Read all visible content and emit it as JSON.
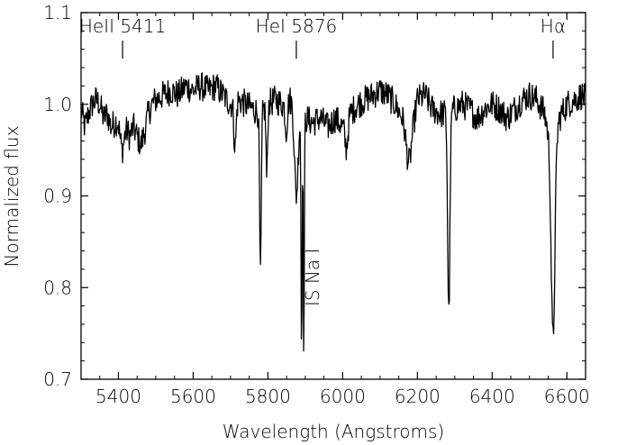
{
  "chart_data": {
    "type": "line",
    "xlabel": "Wavelength (Angstroms)",
    "ylabel": "Normalized flux",
    "xlim": [
      5300,
      6650
    ],
    "ylim": [
      0.7,
      1.1
    ],
    "x_ticks": [
      {
        "value": 5400,
        "label": "5400"
      },
      {
        "value": 5600,
        "label": "5600"
      },
      {
        "value": 5800,
        "label": "5800"
      },
      {
        "value": 6000,
        "label": "6000"
      },
      {
        "value": 6200,
        "label": "6200"
      },
      {
        "value": 6400,
        "label": "6400"
      },
      {
        "value": 6600,
        "label": "6600"
      }
    ],
    "y_ticks": [
      {
        "value": 0.7,
        "label": "0.7"
      },
      {
        "value": 0.8,
        "label": "0.8"
      },
      {
        "value": 0.9,
        "label": "0.9"
      },
      {
        "value": 1.0,
        "label": "1.0"
      },
      {
        "value": 1.1,
        "label": "1.1"
      }
    ],
    "annotations": [
      {
        "label": "HeII 5411",
        "x": 5411
      },
      {
        "label": "HeI 5876",
        "x": 5876
      },
      {
        "label": "Hα",
        "x": 6563
      }
    ],
    "side_annotation": {
      "label": "IS Na I",
      "x": 5893
    },
    "series": [
      {
        "continuum": [
          [
            5300,
            0.995
          ],
          [
            5310,
            0.975
          ],
          [
            5320,
            0.99
          ],
          [
            5330,
            1.0
          ],
          [
            5340,
            1.005
          ],
          [
            5350,
            1.0
          ],
          [
            5360,
            0.985
          ],
          [
            5370,
            0.99
          ],
          [
            5380,
            0.975
          ],
          [
            5390,
            0.98
          ],
          [
            5400,
            0.985
          ],
          [
            5410,
            0.97
          ],
          [
            5420,
            0.975
          ],
          [
            5430,
            0.965
          ],
          [
            5440,
            0.975
          ],
          [
            5450,
            0.965
          ],
          [
            5460,
            0.955
          ],
          [
            5470,
            0.97
          ],
          [
            5480,
            0.99
          ],
          [
            5490,
            1.0
          ],
          [
            5500,
            1.005
          ],
          [
            5520,
            1.01
          ],
          [
            5540,
            1.015
          ],
          [
            5560,
            1.01
          ],
          [
            5580,
            1.02
          ],
          [
            5600,
            1.015
          ],
          [
            5620,
            1.02
          ],
          [
            5640,
            1.015
          ],
          [
            5660,
            1.02
          ],
          [
            5680,
            1.01
          ],
          [
            5700,
            1.0
          ],
          [
            5720,
            1.005
          ],
          [
            5740,
            1.0
          ],
          [
            5760,
            0.995
          ],
          [
            5780,
            0.99
          ],
          [
            5800,
            1.0
          ],
          [
            5820,
            1.005
          ],
          [
            5840,
            1.0
          ],
          [
            5860,
            1.005
          ],
          [
            5880,
            1.0
          ],
          [
            5900,
            0.985
          ],
          [
            5920,
            0.98
          ],
          [
            5940,
            0.985
          ],
          [
            5960,
            0.975
          ],
          [
            5980,
            0.985
          ],
          [
            6000,
            0.975
          ],
          [
            6020,
            0.99
          ],
          [
            6040,
            1.0
          ],
          [
            6060,
            1.005
          ],
          [
            6080,
            1.01
          ],
          [
            6100,
            1.015
          ],
          [
            6120,
            1.01
          ],
          [
            6140,
            1.0
          ],
          [
            6160,
            0.985
          ],
          [
            6170,
            0.97
          ],
          [
            6180,
            0.965
          ],
          [
            6190,
            0.98
          ],
          [
            6200,
            1.005
          ],
          [
            6220,
            1.01
          ],
          [
            6240,
            0.995
          ],
          [
            6260,
            0.99
          ],
          [
            6280,
            0.99
          ],
          [
            6300,
            0.995
          ],
          [
            6320,
            1.0
          ],
          [
            6340,
            0.995
          ],
          [
            6360,
            0.985
          ],
          [
            6380,
            0.995
          ],
          [
            6400,
            1.0
          ],
          [
            6420,
            0.995
          ],
          [
            6440,
            0.985
          ],
          [
            6460,
            0.995
          ],
          [
            6480,
            1.005
          ],
          [
            6500,
            1.01
          ],
          [
            6520,
            1.005
          ],
          [
            6540,
            0.99
          ],
          [
            6550,
            0.97
          ],
          [
            6560,
            0.96
          ],
          [
            6580,
            0.985
          ],
          [
            6600,
            1.0
          ],
          [
            6620,
            1.005
          ],
          [
            6640,
            1.01
          ],
          [
            6650,
            1.005
          ]
        ],
        "absorption_lines": [
          {
            "center": 5409,
            "depth": 0.02,
            "width": 6
          },
          {
            "center": 5712,
            "depth": 0.05,
            "width": 3
          },
          {
            "center": 5780,
            "depth": 0.18,
            "width": 2.2
          },
          {
            "center": 5797,
            "depth": 0.08,
            "width": 2
          },
          {
            "center": 5849,
            "depth": 0.03,
            "width": 3
          },
          {
            "center": 5876,
            "depth": 0.1,
            "width": 5
          },
          {
            "center": 5890,
            "depth": 0.26,
            "width": 1.4
          },
          {
            "center": 5896,
            "depth": 0.26,
            "width": 1.4
          },
          {
            "center": 6010,
            "depth": 0.03,
            "width": 4
          },
          {
            "center": 6177,
            "depth": 0.03,
            "width": 6
          },
          {
            "center": 6284,
            "depth": 0.22,
            "width": 3
          },
          {
            "center": 6563,
            "depth": 0.22,
            "width": 5
          }
        ],
        "noise_amplitude": 0.016
      }
    ]
  }
}
